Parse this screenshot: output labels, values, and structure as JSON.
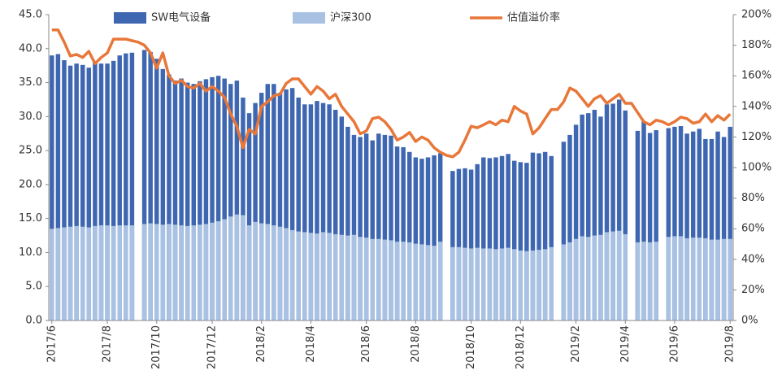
{
  "chart_data": {
    "type": "bar_line",
    "categories": [
      "2017/6",
      null,
      null,
      null,
      null,
      null,
      null,
      null,
      null,
      "2017/8",
      null,
      null,
      null,
      null,
      null,
      null,
      null,
      "2017/10",
      null,
      null,
      null,
      null,
      null,
      null,
      null,
      null,
      "2017/12",
      null,
      null,
      null,
      null,
      null,
      null,
      null,
      "2018/2",
      null,
      null,
      null,
      null,
      null,
      null,
      null,
      "2018/4",
      null,
      null,
      null,
      null,
      null,
      null,
      null,
      null,
      "2018/6",
      null,
      null,
      null,
      null,
      null,
      null,
      null,
      "2018/8",
      null,
      null,
      null,
      null,
      null,
      null,
      null,
      null,
      "2018/10",
      null,
      null,
      null,
      null,
      null,
      null,
      null,
      "2018/12",
      null,
      null,
      null,
      null,
      null,
      null,
      null,
      null,
      "2019/2",
      null,
      null,
      null,
      null,
      null,
      null,
      null,
      "2019/4",
      null,
      null,
      null,
      null,
      null,
      null,
      null,
      "2019/6",
      null,
      null,
      null,
      null,
      null,
      null,
      null,
      null,
      "2019/8"
    ],
    "series": [
      {
        "name": "SW电气设备",
        "color": "#3f67b1",
        "axis": "y",
        "values": [
          39.0,
          39.2,
          38.3,
          37.5,
          37.8,
          37.6,
          37.2,
          38.2,
          37.8,
          37.8,
          38.2,
          39.0,
          39.3,
          39.4,
          null,
          39.8,
          39.5,
          38.5,
          37.0,
          36.2,
          35.3,
          35.6,
          35.0,
          34.8,
          35.2,
          35.5,
          35.8,
          36.0,
          35.6,
          34.8,
          35.3,
          32.8,
          30.5,
          32.0,
          33.5,
          34.8,
          34.8,
          33.5,
          34.0,
          34.2,
          32.8,
          31.8,
          31.8,
          32.3,
          32.0,
          31.8,
          31.0,
          30.0,
          28.5,
          27.3,
          27.0,
          27.5,
          26.5,
          27.5,
          27.3,
          27.2,
          25.6,
          25.5,
          24.8,
          24.0,
          23.8,
          24.0,
          24.3,
          24.6,
          null,
          22.0,
          22.3,
          22.4,
          22.2,
          23.0,
          24.0,
          23.9,
          24.0,
          24.2,
          24.5,
          23.5,
          23.3,
          23.2,
          24.7,
          24.6,
          24.8,
          24.2,
          null,
          26.3,
          27.3,
          28.8,
          30.3,
          30.5,
          31.0,
          30.0,
          31.8,
          31.9,
          32.5,
          30.9,
          null,
          27.9,
          29.3,
          27.6,
          28.0,
          null,
          28.3,
          28.5,
          28.6,
          27.5,
          27.8,
          28.2,
          26.7,
          26.7,
          27.8,
          27.0,
          28.5
        ]
      },
      {
        "name": "沪深300",
        "color": "#a9c2e3",
        "axis": "y",
        "values": [
          13.5,
          13.6,
          13.7,
          13.8,
          13.9,
          13.8,
          13.7,
          13.9,
          14.0,
          14.0,
          13.9,
          14.0,
          14.0,
          14.0,
          null,
          14.2,
          14.3,
          14.2,
          14.1,
          14.2,
          14.1,
          14.0,
          13.9,
          14.0,
          14.1,
          14.2,
          14.4,
          14.6,
          14.9,
          15.3,
          15.6,
          15.5,
          14.0,
          14.5,
          14.3,
          14.2,
          14.0,
          13.8,
          13.6,
          13.3,
          13.1,
          13.0,
          12.9,
          12.8,
          13.0,
          12.9,
          12.7,
          12.6,
          12.5,
          12.6,
          12.3,
          12.2,
          12.0,
          12.0,
          11.9,
          11.8,
          11.6,
          11.6,
          11.5,
          11.3,
          11.2,
          11.1,
          11.0,
          11.6,
          null,
          10.8,
          10.8,
          10.7,
          10.6,
          10.7,
          10.6,
          10.6,
          10.5,
          10.6,
          10.7,
          10.5,
          10.3,
          10.2,
          10.3,
          10.4,
          10.5,
          10.8,
          null,
          11.2,
          11.5,
          12.0,
          12.4,
          12.3,
          12.5,
          12.6,
          13.0,
          13.1,
          13.2,
          12.7,
          null,
          11.5,
          11.6,
          11.5,
          11.6,
          null,
          12.3,
          12.4,
          12.4,
          12.1,
          12.2,
          12.2,
          12.1,
          11.9,
          11.9,
          12.0,
          12.0
        ]
      },
      {
        "name": "估值溢价率",
        "color": "#e8773a",
        "axis": "y2",
        "values": [
          190,
          190,
          182,
          173,
          174,
          172,
          176,
          168,
          172,
          175,
          184,
          184,
          184,
          183,
          182,
          180,
          175,
          165,
          175,
          160,
          155,
          157,
          153,
          152,
          155,
          150,
          153,
          150,
          146,
          135,
          127,
          113,
          125,
          122,
          140,
          143,
          147,
          148,
          155,
          158,
          158,
          153,
          148,
          153,
          150,
          145,
          148,
          140,
          135,
          130,
          122,
          124,
          132,
          133,
          130,
          125,
          118,
          120,
          123,
          117,
          120,
          118,
          113,
          110,
          108,
          107,
          110,
          118,
          127,
          126,
          128,
          130,
          128,
          131,
          130,
          140,
          137,
          135,
          122,
          126,
          132,
          138,
          138,
          143,
          152,
          150,
          145,
          140,
          145,
          147,
          142,
          145,
          148,
          142,
          142,
          136,
          130,
          128,
          131,
          130,
          128,
          130,
          133,
          132,
          129,
          130,
          135,
          130,
          134,
          131,
          135
        ]
      }
    ],
    "ylim": [
      0,
      45
    ],
    "yticks": [
      {
        "value": 0,
        "label": "0.0"
      },
      {
        "value": 5,
        "label": "5.0"
      },
      {
        "value": 10,
        "label": "10.0"
      },
      {
        "value": 15,
        "label": "15.0"
      },
      {
        "value": 20,
        "label": "20.0"
      },
      {
        "value": 25,
        "label": "25.0"
      },
      {
        "value": 30,
        "label": "30.0"
      },
      {
        "value": 35,
        "label": "35.0"
      },
      {
        "value": 40,
        "label": "40.0"
      },
      {
        "value": 45,
        "label": "45.0"
      }
    ],
    "y2lim": [
      0,
      200
    ],
    "y2ticks": [
      {
        "value": 0,
        "label": "0%"
      },
      {
        "value": 20,
        "label": "20%"
      },
      {
        "value": 40,
        "label": "40%"
      },
      {
        "value": 60,
        "label": "60%"
      },
      {
        "value": 80,
        "label": "80%"
      },
      {
        "value": 100,
        "label": "100%"
      },
      {
        "value": 120,
        "label": "120%"
      },
      {
        "value": 140,
        "label": "140%"
      },
      {
        "value": 160,
        "label": "160%"
      },
      {
        "value": 180,
        "label": "180%"
      },
      {
        "value": 200,
        "label": "200%"
      }
    ],
    "legend": "top"
  }
}
